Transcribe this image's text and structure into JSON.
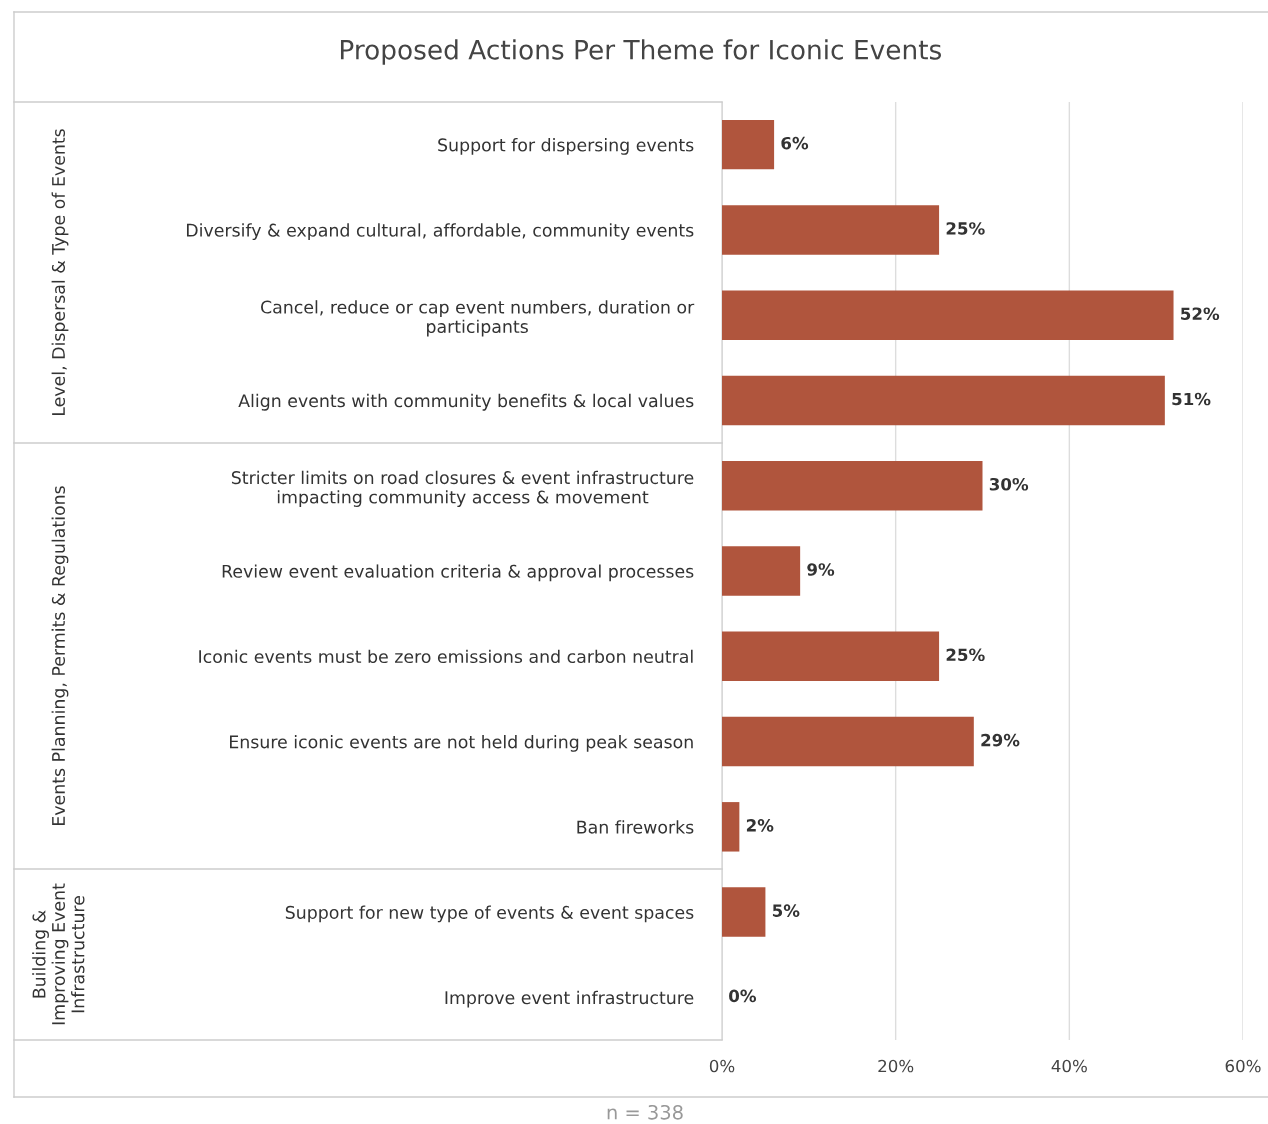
{
  "chart_data": {
    "type": "bar",
    "orientation": "horizontal",
    "title": "Proposed Actions Per Theme for Iconic Events",
    "categories": [
      "Support for dispersing events",
      "Diversify & expand cultural, affordable, community events",
      "Cancel, reduce or cap event numbers, duration or\nparticipants",
      "Align events with community benefits & local values",
      "Stricter limits on road closures & event infrastructure\nimpacting community access & movement",
      "Review event evaluation criteria & approval processes",
      "Iconic events must be zero emissions and carbon neutral",
      "Ensure iconic events are not held during peak season",
      "Ban fireworks",
      "Support for new type of events & event spaces",
      "Improve event infrastructure"
    ],
    "values": [
      6,
      25,
      52,
      51,
      30,
      9,
      25,
      29,
      2,
      5,
      0
    ],
    "value_labels": [
      "6%",
      "25%",
      "52%",
      "51%",
      "30%",
      "9%",
      "25%",
      "29%",
      "2%",
      "5%",
      "0%"
    ],
    "color": "#b0553d",
    "xlim": [
      0,
      60
    ],
    "xticks": [
      {
        "value": 0,
        "label": "0%"
      },
      {
        "value": 20,
        "label": "20%"
      },
      {
        "value": 40,
        "label": "40%"
      },
      {
        "value": 60,
        "label": "60%"
      }
    ],
    "grid": "x",
    "annotations": [
      "Level, Dispersal & Type of Events",
      "Events Planning, Permits & Regulations",
      "Building &\nImproving Event\nInfrastructure",
      "n = 338"
    ]
  }
}
